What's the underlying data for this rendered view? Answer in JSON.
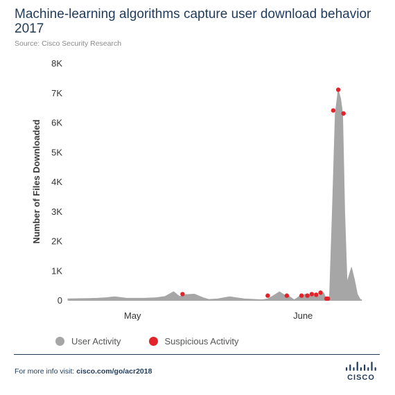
{
  "title": "Machine-learning algorithms capture user download behavior 2017",
  "source": "Source: Cisco Security Research",
  "footer": {
    "prefix": "For more info visit: ",
    "link": "cisco.com/go/acr2018"
  },
  "logo": {
    "text": "CISCO",
    "icon": "cisco-bridge-logo"
  },
  "colors": {
    "user": "#a6a6a6",
    "suspicious": "#e2232a",
    "text": "#1f3b5c",
    "axis": "#3a3a3a"
  },
  "chart_data": {
    "type": "area",
    "ylabel": "Number of Files Downloaded",
    "xlabel": "",
    "ylim": [
      0,
      8000
    ],
    "yticks": [
      0,
      1000,
      2000,
      3000,
      4000,
      5000,
      6000,
      7000,
      8000
    ],
    "ytick_labels": [
      "0",
      "1K",
      "2K",
      "3K",
      "4K",
      "5K",
      "6K",
      "7K",
      "8K"
    ],
    "xlim": [
      0,
      100
    ],
    "xticks": [
      {
        "x": 22,
        "label": "May"
      },
      {
        "x": 80,
        "label": "June"
      }
    ],
    "grid": false,
    "legend": "bottom",
    "series": [
      {
        "name": "User Activity",
        "x": [
          0,
          5,
          10,
          13,
          16,
          20,
          26,
          30,
          33,
          36,
          38,
          40,
          43,
          46,
          48,
          51,
          55,
          60,
          66,
          68,
          70,
          72,
          74,
          75,
          77,
          78,
          79,
          81,
          83,
          84,
          85,
          86,
          87,
          88,
          89,
          90,
          91,
          92,
          92.8,
          93.5,
          94.2,
          95,
          96.5,
          97.5,
          98.5,
          99.5,
          100
        ],
        "values": [
          40,
          50,
          60,
          80,
          110,
          60,
          60,
          80,
          120,
          280,
          120,
          180,
          200,
          80,
          20,
          40,
          110,
          40,
          10,
          40,
          150,
          280,
          150,
          150,
          10,
          70,
          150,
          200,
          180,
          150,
          140,
          180,
          250,
          20,
          30,
          3000,
          6300,
          7100,
          6800,
          6300,
          3000,
          600,
          1100,
          700,
          200,
          20,
          0
        ]
      },
      {
        "name": "Suspicious Activity",
        "x": [
          39,
          68,
          74.5,
          79.5,
          81.5,
          83,
          84.5,
          86,
          88,
          88.5,
          90.3,
          92,
          93.8
        ],
        "values": [
          200,
          150,
          150,
          150,
          150,
          200,
          180,
          250,
          50,
          50,
          6400,
          7100,
          6300
        ]
      }
    ]
  }
}
